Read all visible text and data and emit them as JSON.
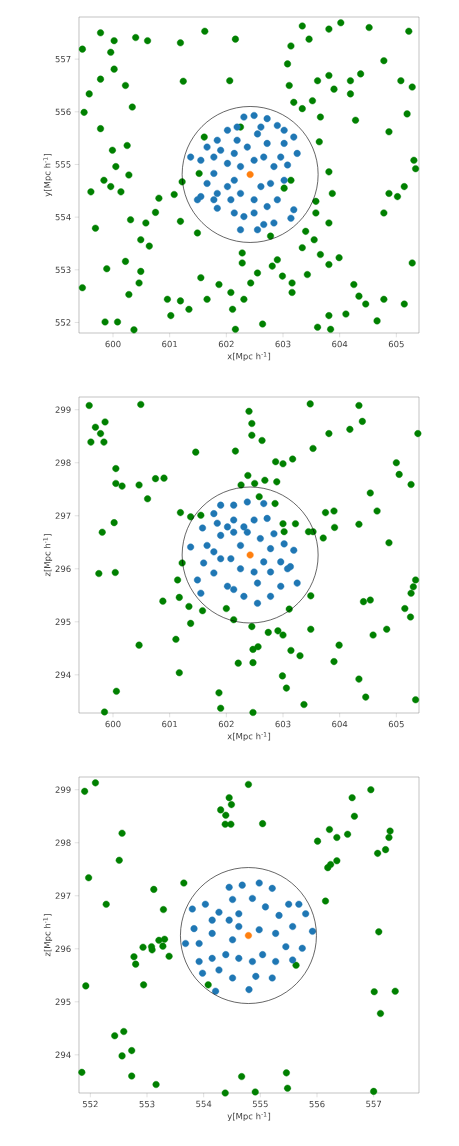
{
  "chart_data": [
    {
      "type": "scatter",
      "xlabel": "x[Mpc h$^{-1}$]",
      "ylabel": "y[Mpc h$^{-1}$]",
      "xlim": [
        599.4,
        605.4
      ],
      "ylim": [
        551.8,
        557.8
      ],
      "xticks": [
        600,
        601,
        602,
        603,
        604,
        605
      ],
      "yticks": [
        552,
        553,
        554,
        555,
        556,
        557
      ],
      "marker": "circle",
      "series": [
        {
          "color": "#008000",
          "x": [
            599.78,
            600.02,
            599.96,
            600.02,
            599.78,
            599.58,
            599.49,
            599.78,
            599.99,
            600.05,
            599.84,
            599.96,
            600.14,
            600.28,
            600.25,
            600.34,
            600.4,
            600.61,
            600.22,
            599.61,
            599.69,
            600.31,
            600.58,
            600.49,
            600.64,
            600.22,
            600.49,
            600.46,
            600.28,
            599.89,
            599.86,
            600.08,
            600.37,
            600.75,
            600.81,
            601.19,
            601.24,
            601.08,
            601.22,
            601.19,
            601.49,
            601.61,
            601.52,
            600.96,
            601.19,
            601.02,
            601.34,
            601.55,
            601.66,
            601.87,
            602.08,
            602.11,
            602.16,
            602.31,
            602.28,
            602.28,
            602.55,
            602.43,
            602.64,
            602.78,
            602.9,
            602.81,
            602.99,
            603.16,
            603.16,
            601.62,
            602.16,
            602.06,
            602.25,
            603.14,
            603.08,
            603.11,
            603.19,
            603.34,
            603.52,
            603.66,
            603.64,
            603.34,
            603.46,
            603.81,
            604.02,
            604.52,
            603.61,
            603.81,
            603.9,
            604.19,
            604.19,
            604.37,
            604.28,
            605.22,
            604.78,
            605.08,
            605.28,
            605.19,
            604.87,
            605.31,
            605.34,
            605.14,
            604.87,
            604.78,
            603.81,
            603.87,
            603.58,
            603.58,
            603.4,
            603.55,
            603.81,
            603.34,
            603.66,
            603.99,
            603.81,
            603.43,
            604.25,
            604.34,
            604.46,
            604.78,
            605.14,
            604.66,
            604.11,
            603.81,
            603.84,
            603.61,
            605.28,
            599.46,
            599.46,
            603.14,
            603.02,
            605.02
          ],
          "values": [
            557.5,
            557.35,
            557.13,
            556.81,
            556.62,
            556.34,
            555.99,
            555.68,
            555.27,
            554.96,
            554.7,
            554.58,
            554.48,
            554.8,
            555.36,
            556.09,
            557.41,
            557.35,
            556.5,
            554.48,
            553.79,
            553.95,
            553.89,
            553.57,
            553.45,
            553.16,
            552.97,
            552.75,
            552.53,
            553.02,
            552.01,
            552.01,
            551.86,
            554.09,
            554.36,
            557.31,
            556.58,
            554.43,
            554.67,
            553.92,
            553.7,
            555.52,
            554.83,
            552.44,
            552.41,
            552.13,
            552.25,
            552.85,
            552.44,
            552.72,
            552.57,
            552.25,
            551.87,
            552.44,
            553.13,
            553.32,
            552.94,
            552.75,
            551.97,
            553.64,
            553.19,
            553.07,
            552.88,
            552.75,
            552.57,
            557.53,
            557.38,
            556.59,
            555.71,
            557.25,
            556.91,
            556.5,
            556.18,
            556.06,
            556.21,
            555.9,
            555.43,
            557.63,
            557.38,
            557.57,
            557.69,
            557.6,
            556.59,
            556.69,
            556.43,
            556.59,
            556.34,
            556.72,
            555.84,
            557.53,
            556.97,
            556.59,
            556.47,
            555.96,
            555.62,
            555.08,
            554.92,
            554.58,
            554.45,
            554.08,
            554.86,
            554.45,
            554.3,
            554.08,
            553.73,
            553.57,
            553.89,
            553.42,
            553.29,
            553.23,
            553.1,
            552.91,
            552.72,
            552.5,
            552.35,
            552.44,
            552.35,
            552.03,
            552.16,
            552.13,
            551.87,
            551.91,
            553.13,
            557.19,
            552.66,
            554.7,
            554.55,
            554.39
          ]
        },
        {
          "color": "#1f77b4",
          "x": [
            602.49,
            602.72,
            602.9,
            603.02,
            603.19,
            603.25,
            603.08,
            603.02,
            603.19,
            603.14,
            602.84,
            602.66,
            602.55,
            602.25,
            602.14,
            601.84,
            601.78,
            601.55,
            601.49,
            601.66,
            601.78,
            601.55,
            601.37,
            601.66,
            601.84,
            602.02,
            602.19,
            602.31,
            602.55,
            602.72,
            602.66,
            602.84,
            602.78,
            602.61,
            602.49,
            602.25,
            602.14,
            602.02,
            602.14,
            602.37,
            602.49,
            602.25,
            602.02,
            601.84,
            602.9,
            602.96,
            602.49,
            602.31,
            602.08,
            601.78,
            603.02,
            602.61,
            602.19,
            602.72,
            601.9
          ],
          "values": [
            555.93,
            555.87,
            555.74,
            555.65,
            555.52,
            555.21,
            554.99,
            554.7,
            554.14,
            553.98,
            553.89,
            553.86,
            553.76,
            553.76,
            554.08,
            554.17,
            554.33,
            554.39,
            554.33,
            554.64,
            554.83,
            555.08,
            555.14,
            555.33,
            555.46,
            555.65,
            555.71,
            555.9,
            555.58,
            555.4,
            555.14,
            554.96,
            554.64,
            554.58,
            554.33,
            554.45,
            554.7,
            555.02,
            555.21,
            555.33,
            555.08,
            554.96,
            554.58,
            554.45,
            554.33,
            555.14,
            554.08,
            554.01,
            554.33,
            555.14,
            555.4,
            555.71,
            555.46,
            554.2,
            555.27
          ]
        },
        {
          "color": "#ff7f0e",
          "x": [
            602.42
          ],
          "values": [
            554.81
          ]
        }
      ]
    },
    {
      "type": "scatter",
      "xlabel": "x[Mpc h$^{-1}$]",
      "ylabel": "z[Mpc h$^{-1}$]",
      "xlim": [
        599.4,
        605.4
      ],
      "ylim": [
        293.28,
        299.24
      ],
      "xticks": [
        600,
        601,
        602,
        603,
        604,
        605
      ],
      "yticks": [
        294,
        295,
        296,
        297,
        298,
        299
      ],
      "marker": "circle",
      "series": [
        {
          "color": "#008000",
          "x": [
            599.58,
            599.61,
            599.69,
            599.78,
            599.86,
            599.84,
            600.49,
            600.05,
            600.05,
            600.16,
            600.46,
            600.61,
            600.75,
            600.9,
            600.02,
            599.81,
            599.75,
            600.04,
            600.46,
            600.06,
            599.85,
            600.88,
            601.11,
            601.17,
            601.14,
            601.17,
            601.22,
            601.19,
            601.37,
            601.55,
            601.46,
            601.34,
            601.37,
            601.58,
            601.87,
            601.9,
            602.0,
            602.13,
            602.21,
            602.16,
            602.4,
            602.45,
            602.45,
            602.63,
            602.26,
            602.38,
            602.5,
            602.68,
            602.89,
            602.58,
            602.86,
            602.87,
            603.0,
            603.17,
            602.45,
            602.47,
            602.56,
            602.47,
            602.47,
            602.74,
            602.91,
            603.0,
            602.99,
            603.06,
            603.11,
            603.14,
            603.3,
            603.37,
            603.0,
            603.02,
            603.22,
            603.45,
            603.53,
            603.71,
            603.49,
            603.49,
            603.53,
            603.48,
            603.81,
            603.75,
            603.9,
            603.91,
            603.99,
            603.9,
            604.18,
            604.34,
            604.4,
            604.34,
            604.54,
            604.66,
            604.42,
            604.54,
            604.59,
            604.34,
            604.46,
            604.87,
            604.83,
            605.0,
            605.05,
            605.26,
            605.34,
            605.3,
            605.26,
            605.15,
            605.25,
            605.34,
            605.38
          ],
          "values": [
            299.08,
            298.39,
            298.67,
            298.55,
            298.77,
            298.39,
            299.1,
            297.89,
            297.61,
            297.56,
            297.58,
            297.32,
            297.7,
            297.71,
            296.87,
            296.69,
            295.91,
            295.93,
            294.56,
            293.69,
            293.3,
            295.39,
            294.67,
            294.04,
            295.79,
            295.46,
            296.11,
            297.06,
            296.98,
            297.01,
            298.2,
            295.29,
            294.97,
            295.21,
            293.66,
            293.37,
            295.25,
            295.04,
            294.22,
            298.22,
            298.97,
            298.74,
            298.52,
            298.42,
            297.58,
            297.76,
            297.61,
            297.67,
            297.64,
            297.36,
            297.23,
            298.02,
            297.98,
            298.07,
            294.91,
            294.48,
            294.53,
            294.23,
            293.29,
            294.8,
            294.83,
            294.75,
            293.98,
            293.75,
            295.24,
            294.46,
            294.36,
            293.44,
            296.85,
            296.7,
            296.85,
            296.7,
            296.7,
            296.58,
            295.49,
            294.86,
            298.27,
            299.11,
            298.55,
            297.06,
            297.09,
            296.78,
            294.56,
            294.25,
            298.63,
            299.08,
            298.78,
            296.84,
            297.43,
            297.09,
            295.38,
            295.41,
            294.75,
            293.92,
            293.58,
            296.49,
            294.86,
            298.0,
            297.78,
            297.59,
            295.79,
            295.66,
            295.54,
            295.25,
            295.09,
            293.53,
            298.55
          ]
        },
        {
          "color": "#1f77b4",
          "x": [
            602.13,
            602.37,
            602.66,
            601.9,
            601.78,
            602.13,
            601.84,
            601.58,
            602.49,
            602.72,
            602.84,
            603.02,
            603.19,
            603.13,
            603.25,
            602.96,
            602.78,
            602.55,
            602.31,
            602.13,
            602.02,
            601.78,
            601.6,
            601.49,
            601.55,
            601.37,
            601.66,
            601.9,
            602.13,
            602.25,
            602.08,
            602.25,
            602.49,
            602.66,
            602.78,
            602.6,
            602.37,
            602.96,
            603.08,
            602.55,
            601.9,
            601.78,
            602.31,
            602.02,
            602.78
          ],
          "values": [
            297.2,
            297.26,
            297.23,
            297.2,
            297.04,
            296.92,
            296.86,
            296.77,
            296.92,
            296.95,
            296.66,
            296.47,
            296.35,
            296.04,
            295.73,
            295.67,
            295.48,
            295.35,
            295.48,
            295.61,
            295.67,
            295.92,
            296.11,
            295.79,
            295.54,
            296.41,
            296.44,
            296.63,
            296.69,
            296.44,
            296.19,
            296.0,
            295.94,
            296.13,
            296.38,
            296.57,
            296.69,
            296.13,
            296.0,
            295.73,
            296.19,
            296.32,
            296.79,
            296.79,
            295.94
          ]
        },
        {
          "color": "#ff7f0e",
          "x": [
            602.42
          ],
          "values": [
            296.26
          ]
        }
      ]
    },
    {
      "type": "scatter",
      "xlabel": "y[Mpc h$^{-1}$]",
      "ylabel": "z[Mpc h$^{-1}$]",
      "xlim": [
        551.8,
        557.8
      ],
      "ylim": [
        293.28,
        299.24
      ],
      "xticks": [
        552,
        553,
        554,
        555,
        556,
        557
      ],
      "yticks": [
        294,
        295,
        296,
        297,
        298,
        299
      ],
      "marker": "circle",
      "series": [
        {
          "color": "#008000",
          "x": [
            551.9,
            552.09,
            551.97,
            551.92,
            551.85,
            552.28,
            552.56,
            552.51,
            552.43,
            552.59,
            552.56,
            552.73,
            552.77,
            552.8,
            552.73,
            552.94,
            552.93,
            553.08,
            553.12,
            553.09,
            553.21,
            553.31,
            553.29,
            553.28,
            553.39,
            553.65,
            553.16,
            554.08,
            554.3,
            554.39,
            554.45,
            554.49,
            554.38,
            554.48,
            554.38,
            554.67,
            554.79,
            555.04,
            554.91,
            555.46,
            555.48,
            555.63,
            556.01,
            556.22,
            556.35,
            556.54,
            556.19,
            556.24,
            556.35,
            556.15,
            556.62,
            556.66,
            556.95,
            557.07,
            557.21,
            557.27,
            557.29,
            557.09,
            557.01,
            557.38,
            557.12,
            557.0
          ],
          "values": [
            298.97,
            299.13,
            297.34,
            295.3,
            293.67,
            296.84,
            298.18,
            297.67,
            294.36,
            294.44,
            293.98,
            294.08,
            295.85,
            295.71,
            293.6,
            295.32,
            296.03,
            296.04,
            297.12,
            295.98,
            296.16,
            296.18,
            296.74,
            296.05,
            295.86,
            297.24,
            293.44,
            295.32,
            298.62,
            298.52,
            298.85,
            298.72,
            298.35,
            298.35,
            293.28,
            293.59,
            299.1,
            298.36,
            293.3,
            293.66,
            293.37,
            295.69,
            298.03,
            298.25,
            298.1,
            298.16,
            297.53,
            297.59,
            297.66,
            296.9,
            298.85,
            298.5,
            299.0,
            297.8,
            297.87,
            298.1,
            298.22,
            296.32,
            295.19,
            295.2,
            294.78,
            293.31
          ]
        },
        {
          "color": "#1f77b4",
          "x": [
            554.45,
            554.68,
            554.98,
            555.21,
            554.51,
            554.86,
            554.03,
            554.27,
            553.8,
            553.83,
            553.68,
            553.92,
            554.15,
            554.45,
            554.62,
            555.09,
            555.33,
            555.5,
            555.68,
            555.8,
            555.92,
            555.57,
            555.27,
            555.45,
            555.74,
            555.57,
            555.27,
            555.04,
            554.86,
            554.62,
            554.39,
            554.15,
            553.92,
            554.27,
            554.51,
            554.8,
            554.92,
            555.21,
            554.21,
            553.98,
            554.51,
            554.98,
            554.62,
            554.15
          ],
          "values": [
            297.16,
            297.2,
            297.24,
            297.14,
            296.93,
            296.95,
            296.84,
            296.69,
            296.75,
            296.38,
            296.1,
            296.1,
            296.29,
            296.54,
            296.66,
            296.79,
            296.63,
            296.84,
            296.84,
            296.66,
            296.33,
            296.42,
            296.29,
            296.04,
            296.01,
            295.79,
            295.76,
            295.89,
            295.76,
            295.82,
            295.89,
            295.82,
            295.76,
            295.6,
            295.45,
            295.23,
            295.48,
            295.45,
            295.2,
            295.54,
            296.17,
            296.36,
            296.42,
            296.54
          ]
        },
        {
          "color": "#ff7f0e",
          "x": [
            554.79
          ],
          "values": [
            296.25
          ]
        }
      ]
    }
  ]
}
